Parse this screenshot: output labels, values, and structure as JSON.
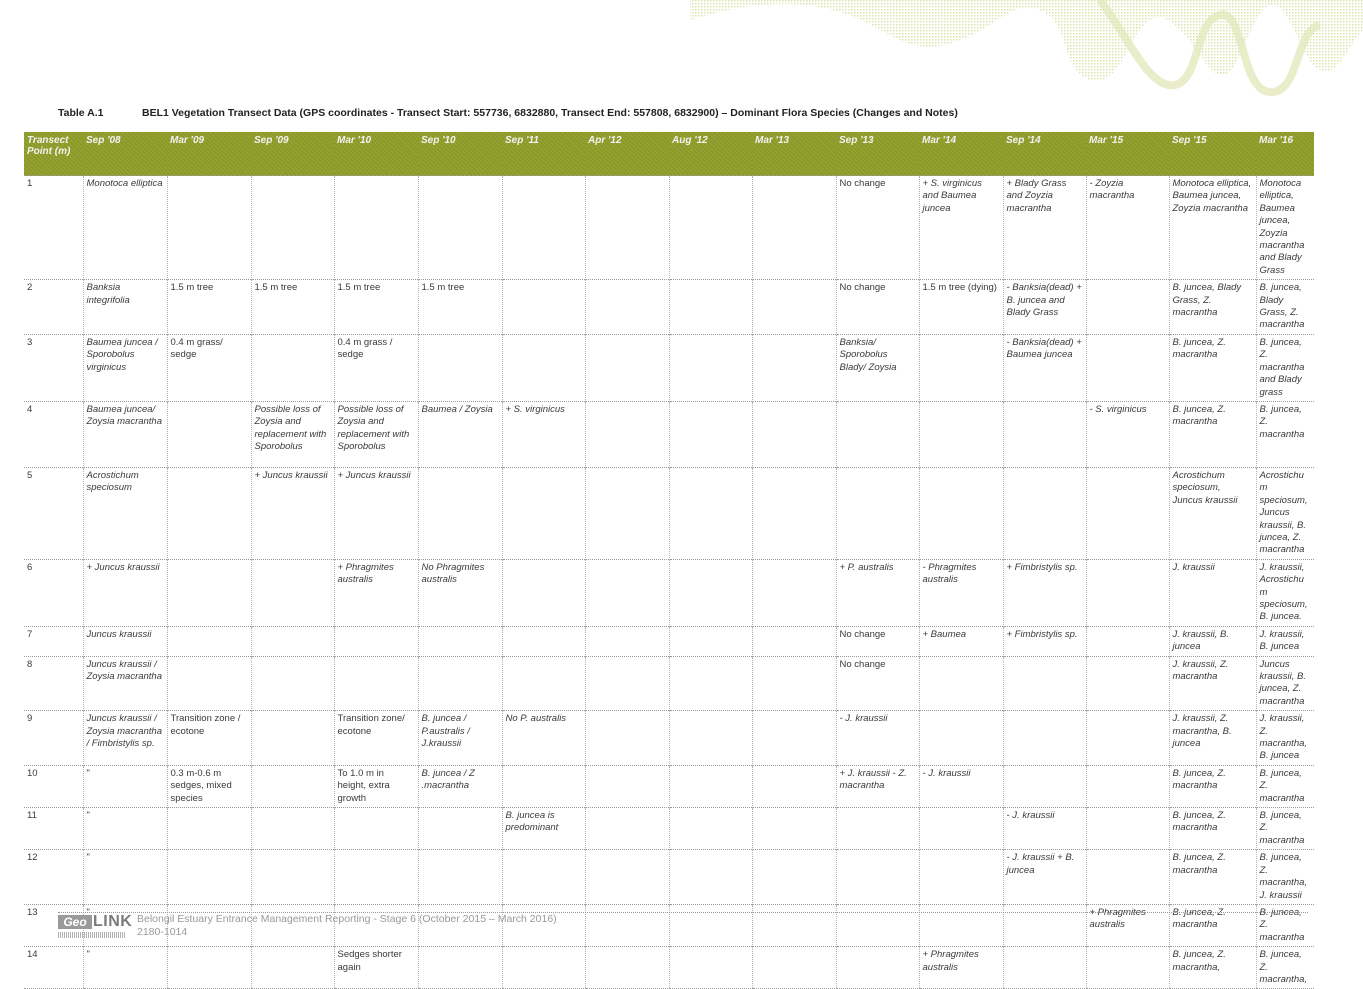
{
  "table_label": "Table A.1",
  "table_caption": "BEL1 Vegetation Transect Data (GPS coordinates - Transect Start: 557736, 6832880, Transect End: 557808, 6832900) – Dominant Flora Species (Changes and Notes)",
  "headers": [
    "Transect Point (m)",
    "Sep '08",
    "Mar '09",
    "Sep '09",
    "Mar '10",
    "Sep '10",
    "Sep '11",
    "Apr '12",
    "Aug '12",
    "Mar '13",
    "Sep '13",
    "Mar '14",
    "Sep '14",
    "Mar '15",
    "Sep '15",
    "Mar '16"
  ],
  "rows": [
    [
      "1",
      "Monotoca elliptica",
      "",
      "",
      "",
      "",
      "",
      "",
      "",
      "",
      "No change",
      "+ S. virginicus and Baumea juncea",
      "+ Blady Grass and Zoyzia macrantha",
      "- Zoyzia macrantha",
      "Monotoca elliptica, Baumea juncea, Zoyzia macrantha",
      "Monotoca elliptica, Baumea juncea, Zoyzia macrantha and Blady Grass"
    ],
    [
      "2",
      "Banksia integrifolia",
      "1.5 m tree",
      "1.5 m tree",
      "1.5 m tree",
      "1.5 m tree",
      "",
      "",
      "",
      "",
      "No change",
      "1.5 m tree (dying)",
      "- Banksia(dead) + B. juncea and Blady Grass",
      "",
      "B. juncea, Blady Grass, Z. macrantha",
      "B. juncea, Blady Grass, Z. macrantha"
    ],
    [
      "3",
      "Baumea juncea / Sporobolus virginicus",
      "0.4 m grass/ sedge",
      "",
      "0.4 m grass / sedge",
      "",
      "",
      "",
      "",
      "",
      "Banksia/ Sporobolus Blady/ Zoysia",
      "",
      "- Banksia(dead) + Baumea juncea",
      "",
      "B. juncea, Z. macrantha",
      "B. juncea, Z. macrantha and Blady grass"
    ],
    [
      "4",
      "Baumea juncea/ Zoysia macrantha",
      "",
      "Possible loss of Zoysia and replacement with Sporobolus",
      "Possible loss of Zoysia and replacement with Sporobolus",
      "Baumea / Zoysia",
      "+ S. virginicus",
      "",
      "",
      "",
      "",
      "",
      "",
      "- S. virginicus",
      "B. juncea, Z. macrantha",
      "B. juncea, Z. macrantha"
    ],
    [
      "5",
      "Acrostichum speciosum",
      "",
      "+ Juncus kraussii",
      "+ Juncus kraussii",
      "",
      "",
      "",
      "",
      "",
      "",
      "",
      "",
      "",
      "Acrostichum speciosum, Juncus kraussii",
      "Acrostichum speciosum, Juncus kraussii, B. juncea, Z. macrantha"
    ],
    [
      "6",
      "+ Juncus kraussii",
      "",
      "",
      "+ Phragmites australis",
      "No Phragmites australis",
      "",
      "",
      "",
      "",
      "+ P. australis",
      "- Phragmites australis",
      "+ Fimbristylis sp.",
      "",
      "J. kraussii",
      "J. kraussii, Acrostichum speciosum, B. juncea."
    ],
    [
      "7",
      "Juncus kraussii",
      "",
      "",
      "",
      "",
      "",
      "",
      "",
      "",
      "No change",
      "+ Baumea",
      "+ Fimbristylis sp.",
      "",
      "J. kraussii, B. juncea",
      "J. kraussii, B. juncea"
    ],
    [
      "8",
      "Juncus kraussii / Zoysia macrantha",
      "",
      "",
      "",
      "",
      "",
      "",
      "",
      "",
      "No change",
      "",
      "",
      "",
      "J. kraussii, Z. macrantha",
      "Juncus kraussii, B. juncea, Z. macrantha"
    ],
    [
      "9",
      "Juncus kraussii / Zoysia macrantha / Fimbristylis sp.",
      "Transition zone / ecotone",
      "",
      "Transition zone/ ecotone",
      "B. juncea / P.australis / J.kraussii",
      "No P. australis",
      "",
      "",
      "",
      "- J. kraussii",
      "",
      "",
      "",
      "J. kraussii, Z. macrantha, B. juncea",
      "J. kraussii, Z. macrantha, B. juncea"
    ],
    [
      "10",
      "\"",
      "0.3 m-0.6 m sedges, mixed species",
      "",
      "To 1.0 m in height, extra growth",
      "B. juncea / Z .macrantha",
      "",
      "",
      "",
      "",
      "+ J. kraussii - Z. macrantha",
      "- J. kraussii",
      "",
      "",
      "B. juncea, Z. macrantha",
      "B. juncea, Z. macrantha"
    ],
    [
      "11",
      "\"",
      "",
      "",
      "",
      "",
      "B. juncea is predominant",
      "",
      "",
      "",
      "",
      "",
      "- J. kraussii",
      "",
      "B. juncea, Z. macrantha",
      "B. juncea, Z. macrantha"
    ],
    [
      "12",
      "\"",
      "",
      "",
      "",
      "",
      "",
      "",
      "",
      "",
      "",
      "",
      "- J. kraussii + B. juncea",
      "",
      "B. juncea, Z. macrantha",
      "B. juncea, Z. macrantha, J. kraussii"
    ],
    [
      "13",
      "\"",
      "",
      "",
      "",
      "",
      "",
      "",
      "",
      "",
      "",
      "",
      "",
      "+ Phragmites australis",
      "B. juncea, Z. macrantha",
      "B. juncea, Z. macrantha"
    ],
    [
      "14",
      "\"",
      "",
      "",
      "Sedges shorter again",
      "",
      "",
      "",
      "",
      "",
      "",
      "+ Phragmites australis",
      "",
      "",
      "B. juncea, Z. macrantha,",
      "B. juncea, Z. macrantha,"
    ]
  ],
  "italic_cells": [
    [
      1,
      1
    ],
    [
      1,
      11
    ],
    [
      1,
      12
    ],
    [
      1,
      13
    ],
    [
      1,
      14
    ],
    [
      1,
      15
    ],
    [
      2,
      1
    ],
    [
      2,
      12
    ],
    [
      2,
      14
    ],
    [
      2,
      15
    ],
    [
      3,
      1
    ],
    [
      3,
      10
    ],
    [
      3,
      12
    ],
    [
      3,
      14
    ],
    [
      3,
      15
    ],
    [
      4,
      1
    ],
    [
      4,
      3
    ],
    [
      4,
      4
    ],
    [
      4,
      5
    ],
    [
      4,
      6
    ],
    [
      4,
      13
    ],
    [
      4,
      14
    ],
    [
      4,
      15
    ],
    [
      5,
      1
    ],
    [
      5,
      3
    ],
    [
      5,
      4
    ],
    [
      5,
      14
    ],
    [
      5,
      15
    ],
    [
      6,
      1
    ],
    [
      6,
      4
    ],
    [
      6,
      5
    ],
    [
      6,
      10
    ],
    [
      6,
      11
    ],
    [
      6,
      12
    ],
    [
      6,
      14
    ],
    [
      6,
      15
    ],
    [
      7,
      1
    ],
    [
      7,
      11
    ],
    [
      7,
      12
    ],
    [
      7,
      14
    ],
    [
      7,
      15
    ],
    [
      8,
      1
    ],
    [
      8,
      14
    ],
    [
      8,
      15
    ],
    [
      9,
      1
    ],
    [
      9,
      5
    ],
    [
      9,
      6
    ],
    [
      9,
      10
    ],
    [
      9,
      14
    ],
    [
      9,
      15
    ],
    [
      10,
      5
    ],
    [
      10,
      10
    ],
    [
      10,
      11
    ],
    [
      10,
      14
    ],
    [
      10,
      15
    ],
    [
      11,
      6
    ],
    [
      11,
      12
    ],
    [
      11,
      14
    ],
    [
      11,
      15
    ],
    [
      12,
      12
    ],
    [
      12,
      14
    ],
    [
      12,
      15
    ],
    [
      13,
      13
    ],
    [
      13,
      14
    ],
    [
      13,
      15
    ],
    [
      14,
      11
    ],
    [
      14,
      14
    ],
    [
      14,
      15
    ]
  ],
  "footer": {
    "logo_geo": "Geo",
    "logo_link": "LINK",
    "line1": "Belongil Estuary Entrance Management Reporting - Stage 6 (October 2015 – March 2016)",
    "line2": "2180-1014"
  }
}
